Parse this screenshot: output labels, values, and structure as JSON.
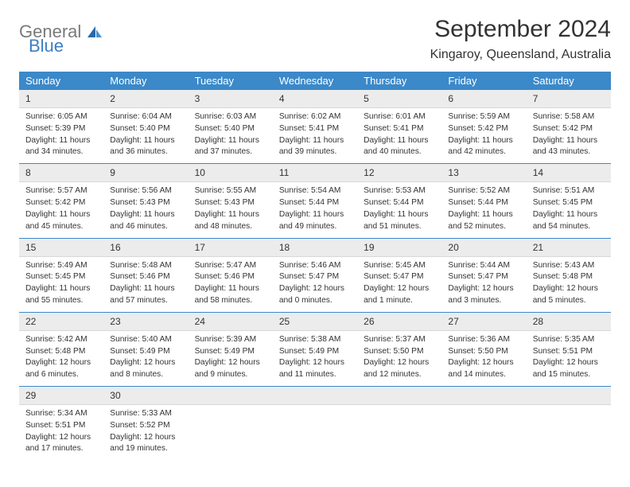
{
  "logo": {
    "label1": "General",
    "label2": "Blue"
  },
  "header": {
    "title": "September 2024",
    "location": "Kingaroy, Queensland, Australia"
  },
  "dayHeaders": [
    "Sunday",
    "Monday",
    "Tuesday",
    "Wednesday",
    "Thursday",
    "Friday",
    "Saturday"
  ],
  "days": [
    {
      "num": "1",
      "sunrise": "Sunrise: 6:05 AM",
      "sunset": "Sunset: 5:39 PM",
      "daylight1": "Daylight: 11 hours",
      "daylight2": "and 34 minutes."
    },
    {
      "num": "2",
      "sunrise": "Sunrise: 6:04 AM",
      "sunset": "Sunset: 5:40 PM",
      "daylight1": "Daylight: 11 hours",
      "daylight2": "and 36 minutes."
    },
    {
      "num": "3",
      "sunrise": "Sunrise: 6:03 AM",
      "sunset": "Sunset: 5:40 PM",
      "daylight1": "Daylight: 11 hours",
      "daylight2": "and 37 minutes."
    },
    {
      "num": "4",
      "sunrise": "Sunrise: 6:02 AM",
      "sunset": "Sunset: 5:41 PM",
      "daylight1": "Daylight: 11 hours",
      "daylight2": "and 39 minutes."
    },
    {
      "num": "5",
      "sunrise": "Sunrise: 6:01 AM",
      "sunset": "Sunset: 5:41 PM",
      "daylight1": "Daylight: 11 hours",
      "daylight2": "and 40 minutes."
    },
    {
      "num": "6",
      "sunrise": "Sunrise: 5:59 AM",
      "sunset": "Sunset: 5:42 PM",
      "daylight1": "Daylight: 11 hours",
      "daylight2": "and 42 minutes."
    },
    {
      "num": "7",
      "sunrise": "Sunrise: 5:58 AM",
      "sunset": "Sunset: 5:42 PM",
      "daylight1": "Daylight: 11 hours",
      "daylight2": "and 43 minutes."
    },
    {
      "num": "8",
      "sunrise": "Sunrise: 5:57 AM",
      "sunset": "Sunset: 5:42 PM",
      "daylight1": "Daylight: 11 hours",
      "daylight2": "and 45 minutes."
    },
    {
      "num": "9",
      "sunrise": "Sunrise: 5:56 AM",
      "sunset": "Sunset: 5:43 PM",
      "daylight1": "Daylight: 11 hours",
      "daylight2": "and 46 minutes."
    },
    {
      "num": "10",
      "sunrise": "Sunrise: 5:55 AM",
      "sunset": "Sunset: 5:43 PM",
      "daylight1": "Daylight: 11 hours",
      "daylight2": "and 48 minutes."
    },
    {
      "num": "11",
      "sunrise": "Sunrise: 5:54 AM",
      "sunset": "Sunset: 5:44 PM",
      "daylight1": "Daylight: 11 hours",
      "daylight2": "and 49 minutes."
    },
    {
      "num": "12",
      "sunrise": "Sunrise: 5:53 AM",
      "sunset": "Sunset: 5:44 PM",
      "daylight1": "Daylight: 11 hours",
      "daylight2": "and 51 minutes."
    },
    {
      "num": "13",
      "sunrise": "Sunrise: 5:52 AM",
      "sunset": "Sunset: 5:44 PM",
      "daylight1": "Daylight: 11 hours",
      "daylight2": "and 52 minutes."
    },
    {
      "num": "14",
      "sunrise": "Sunrise: 5:51 AM",
      "sunset": "Sunset: 5:45 PM",
      "daylight1": "Daylight: 11 hours",
      "daylight2": "and 54 minutes."
    },
    {
      "num": "15",
      "sunrise": "Sunrise: 5:49 AM",
      "sunset": "Sunset: 5:45 PM",
      "daylight1": "Daylight: 11 hours",
      "daylight2": "and 55 minutes."
    },
    {
      "num": "16",
      "sunrise": "Sunrise: 5:48 AM",
      "sunset": "Sunset: 5:46 PM",
      "daylight1": "Daylight: 11 hours",
      "daylight2": "and 57 minutes."
    },
    {
      "num": "17",
      "sunrise": "Sunrise: 5:47 AM",
      "sunset": "Sunset: 5:46 PM",
      "daylight1": "Daylight: 11 hours",
      "daylight2": "and 58 minutes."
    },
    {
      "num": "18",
      "sunrise": "Sunrise: 5:46 AM",
      "sunset": "Sunset: 5:47 PM",
      "daylight1": "Daylight: 12 hours",
      "daylight2": "and 0 minutes."
    },
    {
      "num": "19",
      "sunrise": "Sunrise: 5:45 AM",
      "sunset": "Sunset: 5:47 PM",
      "daylight1": "Daylight: 12 hours",
      "daylight2": "and 1 minute."
    },
    {
      "num": "20",
      "sunrise": "Sunrise: 5:44 AM",
      "sunset": "Sunset: 5:47 PM",
      "daylight1": "Daylight: 12 hours",
      "daylight2": "and 3 minutes."
    },
    {
      "num": "21",
      "sunrise": "Sunrise: 5:43 AM",
      "sunset": "Sunset: 5:48 PM",
      "daylight1": "Daylight: 12 hours",
      "daylight2": "and 5 minutes."
    },
    {
      "num": "22",
      "sunrise": "Sunrise: 5:42 AM",
      "sunset": "Sunset: 5:48 PM",
      "daylight1": "Daylight: 12 hours",
      "daylight2": "and 6 minutes."
    },
    {
      "num": "23",
      "sunrise": "Sunrise: 5:40 AM",
      "sunset": "Sunset: 5:49 PM",
      "daylight1": "Daylight: 12 hours",
      "daylight2": "and 8 minutes."
    },
    {
      "num": "24",
      "sunrise": "Sunrise: 5:39 AM",
      "sunset": "Sunset: 5:49 PM",
      "daylight1": "Daylight: 12 hours",
      "daylight2": "and 9 minutes."
    },
    {
      "num": "25",
      "sunrise": "Sunrise: 5:38 AM",
      "sunset": "Sunset: 5:49 PM",
      "daylight1": "Daylight: 12 hours",
      "daylight2": "and 11 minutes."
    },
    {
      "num": "26",
      "sunrise": "Sunrise: 5:37 AM",
      "sunset": "Sunset: 5:50 PM",
      "daylight1": "Daylight: 12 hours",
      "daylight2": "and 12 minutes."
    },
    {
      "num": "27",
      "sunrise": "Sunrise: 5:36 AM",
      "sunset": "Sunset: 5:50 PM",
      "daylight1": "Daylight: 12 hours",
      "daylight2": "and 14 minutes."
    },
    {
      "num": "28",
      "sunrise": "Sunrise: 5:35 AM",
      "sunset": "Sunset: 5:51 PM",
      "daylight1": "Daylight: 12 hours",
      "daylight2": "and 15 minutes."
    },
    {
      "num": "29",
      "sunrise": "Sunrise: 5:34 AM",
      "sunset": "Sunset: 5:51 PM",
      "daylight1": "Daylight: 12 hours",
      "daylight2": "and 17 minutes."
    },
    {
      "num": "30",
      "sunrise": "Sunrise: 5:33 AM",
      "sunset": "Sunset: 5:52 PM",
      "daylight1": "Daylight: 12 hours",
      "daylight2": "and 19 minutes."
    }
  ],
  "styling": {
    "header_bg": "#3b89c9",
    "day_num_bg": "#ececec",
    "border_color": "#3b89c9"
  }
}
